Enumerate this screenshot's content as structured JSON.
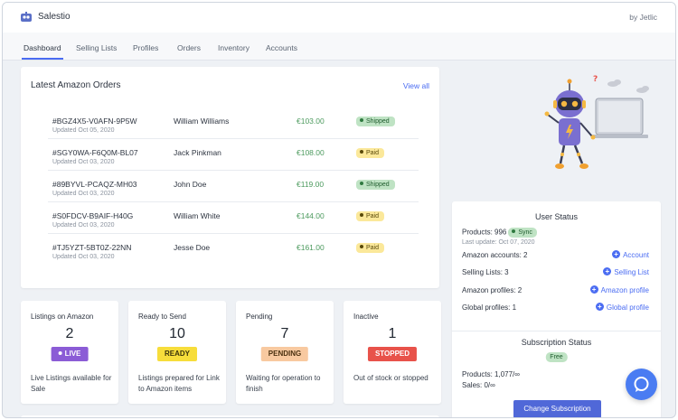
{
  "app": {
    "title": "Salestio",
    "byline": "by Jetlic"
  },
  "nav": {
    "tabs": [
      "Dashboard",
      "Selling Lists",
      "Profiles",
      "Orders",
      "Inventory",
      "Accounts"
    ]
  },
  "orders": {
    "title": "Latest Amazon Orders",
    "view_all": "View all",
    "rows": [
      {
        "id": "#BGZ4X5-V0AFN-9P5W",
        "date": "Updated Oct 05, 2020",
        "name": "William Williams",
        "amount": "€103.00",
        "status": "Shipped"
      },
      {
        "id": "#SGY0WA-F6Q0M-BL07",
        "date": "Updated Oct 03, 2020",
        "name": "Jack Pinkman",
        "amount": "€108.00",
        "status": "Paid"
      },
      {
        "id": "#89BYVL-PCAQZ-MH03",
        "date": "Updated Oct 03, 2020",
        "name": "John Doe",
        "amount": "€119.00",
        "status": "Shipped"
      },
      {
        "id": "#S0FDCV-B9AIF-H40G",
        "date": "Updated Oct 03, 2020",
        "name": "William White",
        "amount": "€144.00",
        "status": "Paid"
      },
      {
        "id": "#TJ5YZT-5BT0Z-22NN",
        "date": "Updated Oct 03, 2020",
        "name": "Jesse Doe",
        "amount": "€161.00",
        "status": "Paid"
      }
    ]
  },
  "stats": [
    {
      "label": "Listings on Amazon",
      "value": "2",
      "pill": "LIVE",
      "desc": "Live Listings available for Sale"
    },
    {
      "label": "Ready to Send",
      "value": "10",
      "pill": "READY",
      "desc": "Listings prepared for Link to Amazon items"
    },
    {
      "label": "Pending",
      "value": "7",
      "pill": "PENDING",
      "desc": "Waiting for operation to finish"
    },
    {
      "label": "Inactive",
      "value": "1",
      "pill": "STOPPED",
      "desc": "Out of stock or stopped"
    }
  ],
  "user_status": {
    "title": "User Status",
    "products": "Products: 996",
    "sync": "Sync",
    "last_update": "Last update: Oct 07, 2020",
    "amazon_accounts": "Amazon accounts: 2",
    "account_link": "Account",
    "selling_lists": "Selling Lists: 3",
    "selling_list_link": "Selling List",
    "amazon_profiles": "Amazon profiles: 2",
    "amazon_profile_link": "Amazon profile",
    "global_profiles": "Global profiles: 1",
    "global_profile_link": "Global profile"
  },
  "subscription": {
    "title": "Subscription Status",
    "plan": "Free",
    "products": "Products: 1,077/∞",
    "sales": "Sales: 0/∞",
    "button": "Change Subscription"
  },
  "colors": {
    "accent": "#4a6cf2",
    "live": "#8b5cd6",
    "ready": "#f7dd3b",
    "pending": "#f8c9a0",
    "stopped": "#e8524a"
  }
}
